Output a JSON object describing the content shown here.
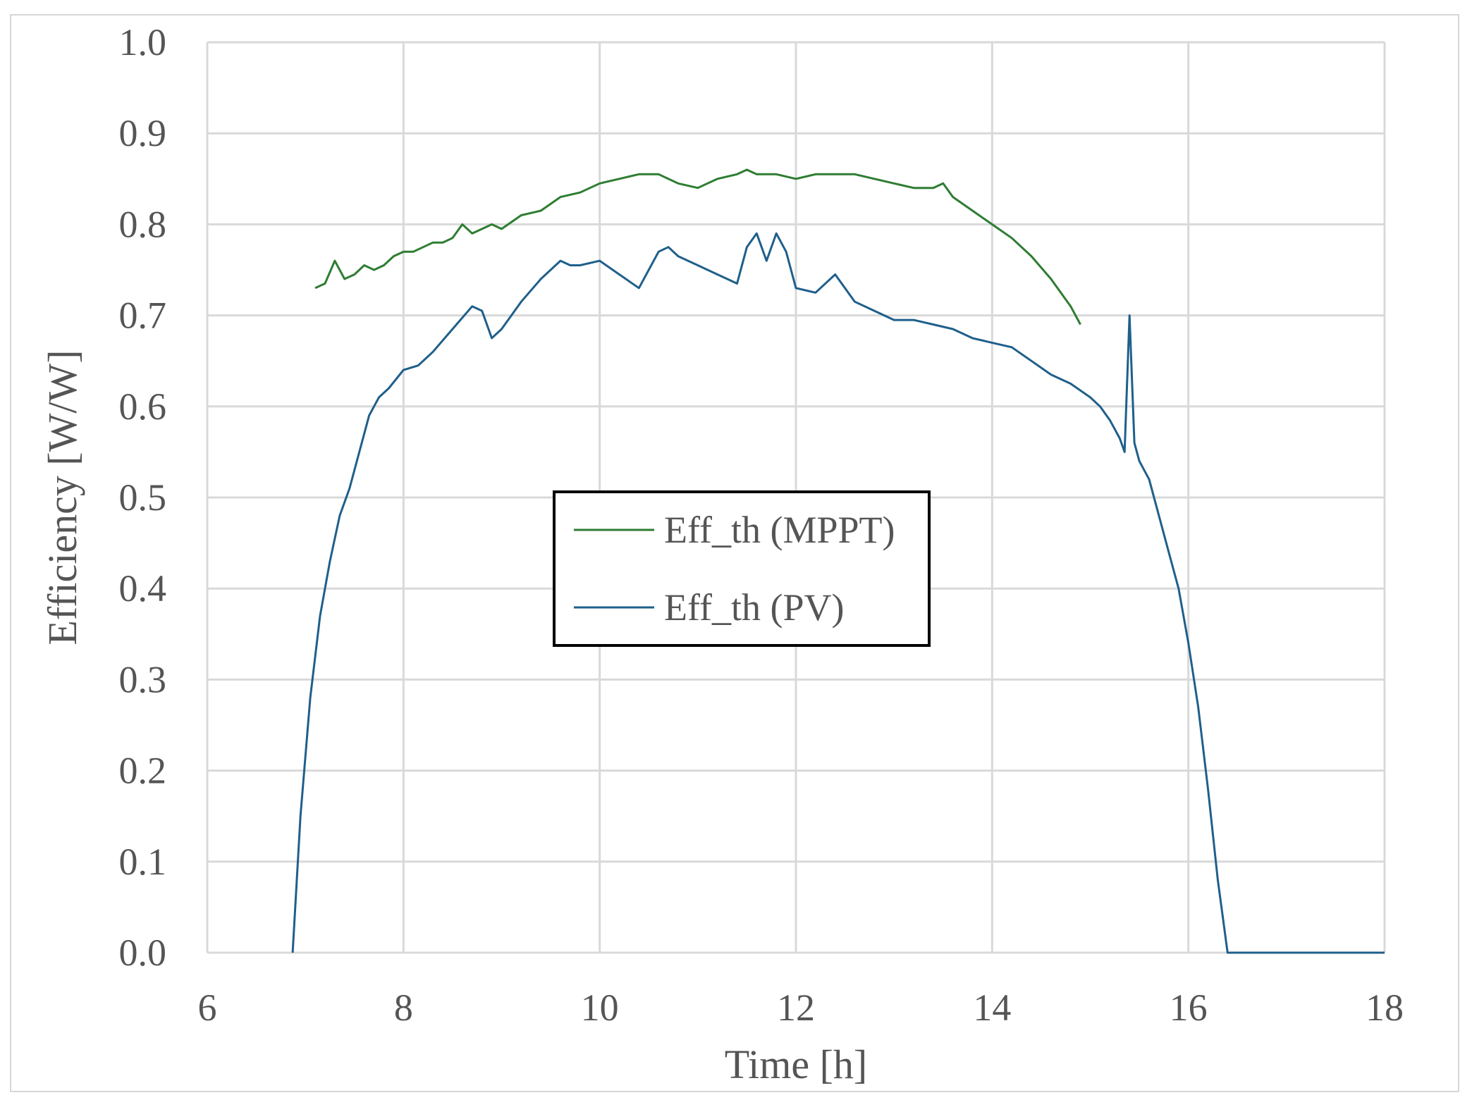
{
  "chart_data": {
    "type": "line",
    "title": "",
    "xlabel": "Time [h]",
    "ylabel": "Efficiency [W/W]",
    "xlim": [
      6,
      18
    ],
    "ylim": [
      0,
      1
    ],
    "x_ticks": [
      "6",
      "8",
      "10",
      "12",
      "14",
      "16",
      "18"
    ],
    "y_ticks": [
      "0.0",
      "0.1",
      "0.2",
      "0.3",
      "0.4",
      "0.5",
      "0.6",
      "0.7",
      "0.8",
      "0.9",
      "1.0"
    ],
    "grid": true,
    "legend_position": "center",
    "series": [
      {
        "name": "Eff_th (MPPT)",
        "color": "#2e7d32",
        "x": [
          7.1,
          7.2,
          7.3,
          7.4,
          7.5,
          7.6,
          7.7,
          7.8,
          7.9,
          8.0,
          8.1,
          8.2,
          8.3,
          8.4,
          8.5,
          8.6,
          8.7,
          8.8,
          8.9,
          9.0,
          9.2,
          9.4,
          9.6,
          9.8,
          10.0,
          10.2,
          10.4,
          10.6,
          10.8,
          11.0,
          11.2,
          11.4,
          11.5,
          11.6,
          11.8,
          12.0,
          12.2,
          12.4,
          12.6,
          12.8,
          13.0,
          13.2,
          13.4,
          13.5,
          13.6,
          13.8,
          14.0,
          14.2,
          14.4,
          14.6,
          14.8,
          14.9
        ],
        "y": [
          0.73,
          0.735,
          0.76,
          0.74,
          0.745,
          0.755,
          0.75,
          0.755,
          0.765,
          0.77,
          0.77,
          0.775,
          0.78,
          0.78,
          0.785,
          0.8,
          0.79,
          0.795,
          0.8,
          0.795,
          0.81,
          0.815,
          0.83,
          0.835,
          0.845,
          0.85,
          0.855,
          0.855,
          0.845,
          0.84,
          0.85,
          0.855,
          0.86,
          0.855,
          0.855,
          0.85,
          0.855,
          0.855,
          0.855,
          0.85,
          0.845,
          0.84,
          0.84,
          0.845,
          0.83,
          0.815,
          0.8,
          0.785,
          0.765,
          0.74,
          0.71,
          0.69
        ]
      },
      {
        "name": "Eff_th (PV)",
        "color": "#1f5f8b",
        "x": [
          6.87,
          6.95,
          7.05,
          7.15,
          7.25,
          7.35,
          7.45,
          7.55,
          7.65,
          7.75,
          7.85,
          8.0,
          8.15,
          8.3,
          8.5,
          8.7,
          8.8,
          8.9,
          9.0,
          9.2,
          9.4,
          9.6,
          9.7,
          9.8,
          10.0,
          10.2,
          10.4,
          10.6,
          10.7,
          10.8,
          11.0,
          11.2,
          11.4,
          11.5,
          11.6,
          11.7,
          11.8,
          11.9,
          12.0,
          12.2,
          12.4,
          12.6,
          12.8,
          13.0,
          13.2,
          13.4,
          13.6,
          13.8,
          14.0,
          14.2,
          14.4,
          14.6,
          14.8,
          15.0,
          15.1,
          15.2,
          15.3,
          15.35,
          15.4,
          15.45,
          15.5,
          15.6,
          15.7,
          15.8,
          15.9,
          16.0,
          16.1,
          16.2,
          16.3,
          16.4,
          16.6,
          17.0,
          17.5,
          18.0
        ],
        "y": [
          0.0,
          0.15,
          0.28,
          0.37,
          0.43,
          0.48,
          0.51,
          0.55,
          0.59,
          0.61,
          0.62,
          0.64,
          0.645,
          0.66,
          0.685,
          0.71,
          0.705,
          0.675,
          0.685,
          0.715,
          0.74,
          0.76,
          0.755,
          0.755,
          0.76,
          0.745,
          0.73,
          0.77,
          0.775,
          0.765,
          0.755,
          0.745,
          0.735,
          0.775,
          0.79,
          0.76,
          0.79,
          0.77,
          0.73,
          0.725,
          0.745,
          0.715,
          0.705,
          0.695,
          0.695,
          0.69,
          0.685,
          0.675,
          0.67,
          0.665,
          0.65,
          0.635,
          0.625,
          0.61,
          0.6,
          0.585,
          0.565,
          0.55,
          0.7,
          0.56,
          0.54,
          0.52,
          0.48,
          0.44,
          0.4,
          0.34,
          0.27,
          0.18,
          0.08,
          0.0,
          0.0,
          0.0,
          0.0,
          0.0
        ]
      }
    ]
  }
}
